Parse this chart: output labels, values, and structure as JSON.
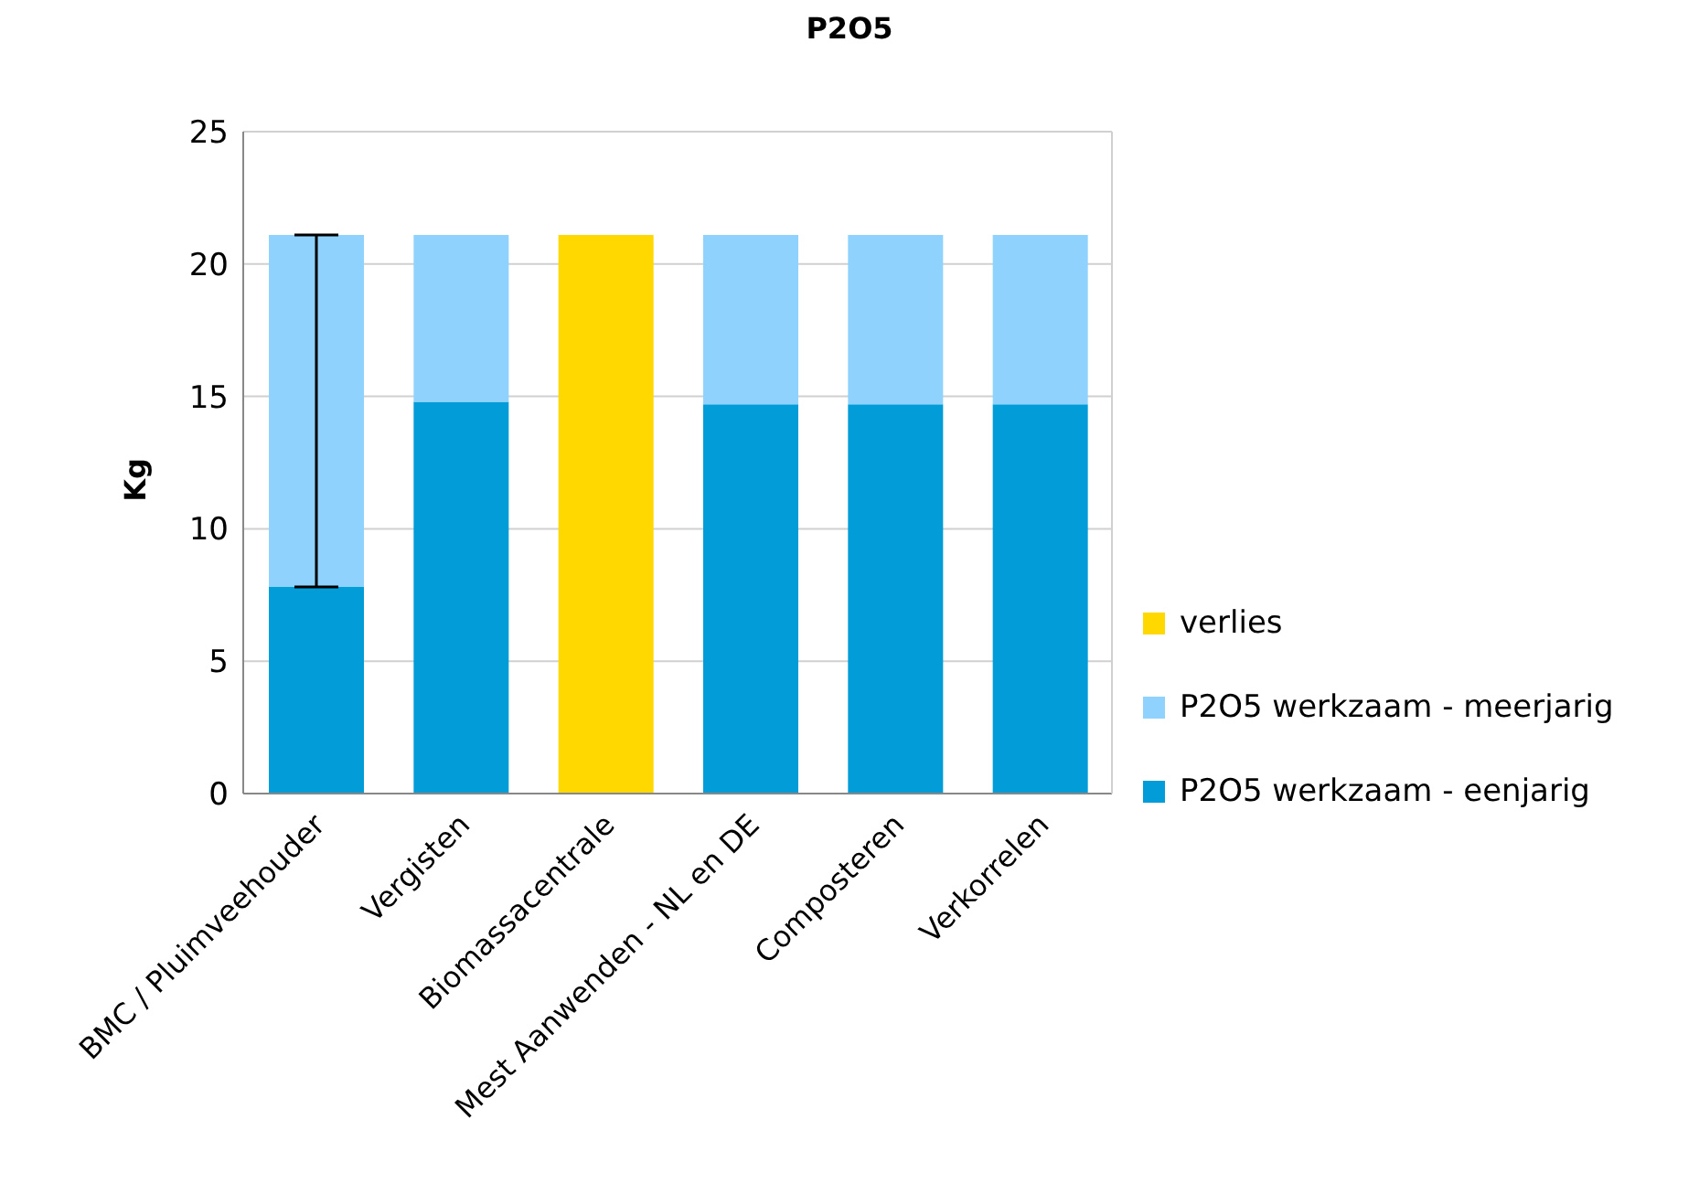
{
  "chart_data": {
    "type": "bar",
    "title": "P2O5",
    "ylabel": "Kg",
    "stacked": true,
    "categories": [
      "BMC / Pluimveehouder",
      "Vergisten",
      "Biomassacentrale",
      "Mest Aanwenden - NL en DE",
      "Composteren",
      "Verkorrelen"
    ],
    "series": [
      {
        "name": "P2O5 werkzaam - eenjarig",
        "color": "#029dd8",
        "values": [
          7.8,
          14.8,
          null,
          14.7,
          14.7,
          14.7
        ],
        "errors": [
          [
            7.8,
            21.1
          ],
          null,
          null,
          null,
          null,
          null
        ]
      },
      {
        "name": "P2O5 werkzaam - meerjarig",
        "color": "#8fd2fe",
        "values": [
          13.3,
          6.3,
          null,
          6.4,
          6.4,
          6.4
        ]
      },
      {
        "name": "verlies",
        "color": "#ffd800",
        "values": [
          null,
          null,
          21.1,
          null,
          null,
          null
        ]
      }
    ],
    "ylim": [
      0,
      25
    ],
    "yticks": [
      0,
      5,
      10,
      15,
      20,
      25
    ],
    "grid": "y",
    "legend": "right"
  }
}
